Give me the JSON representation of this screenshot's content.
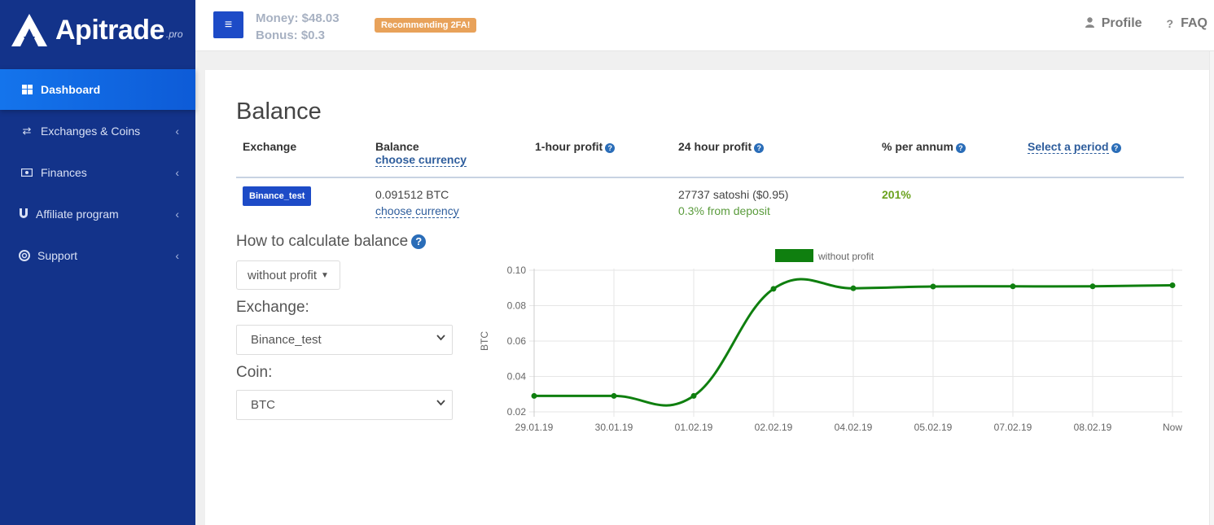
{
  "brand": {
    "name": "Apitrade",
    "suffix": ".pro"
  },
  "sidebar": {
    "items": [
      {
        "label": "Dashboard",
        "icon": "grid-icon",
        "active": true
      },
      {
        "label": "Exchanges & Coins",
        "icon": "exchange-arrows-icon"
      },
      {
        "label": "Finances",
        "icon": "money-icon"
      },
      {
        "label": "Affiliate program",
        "icon": "magnet-icon"
      },
      {
        "label": "Support",
        "icon": "lifebuoy-icon"
      }
    ]
  },
  "topbar": {
    "money": "Money: $48.03",
    "bonus": "Bonus: $0.3",
    "twofa": "Recommending 2FA!",
    "profile": "Profile",
    "faq": "FAQ"
  },
  "balance": {
    "title": "Balance",
    "headers": {
      "exchange": "Exchange",
      "balance": "Balance",
      "choose_currency": "choose currency",
      "hour_profit": "1-hour profit",
      "day_profit": "24 hour profit",
      "per_annum": "% per annum",
      "select_period": "Select a period"
    },
    "row": {
      "exchange": "Binance_test",
      "balance": "0.091512 BTC",
      "choose_currency": "choose currency",
      "day_profit": "27737 satoshi ($0.95)",
      "day_profit_pct": "0.3% from deposit",
      "per_annum": "201%"
    }
  },
  "controls": {
    "calc_label": "How to calculate balance",
    "calc_value": "without profit",
    "exchange_label": "Exchange:",
    "exchange_value": "Binance_test",
    "coin_label": "Coin:",
    "coin_value": "BTC"
  },
  "chart_data": {
    "type": "line",
    "categories": [
      "29.01.19",
      "30.01.19",
      "01.02.19",
      "02.02.19",
      "04.02.19",
      "05.02.19",
      "07.02.19",
      "08.02.19",
      "Now"
    ],
    "series": [
      {
        "name": "without profit",
        "values": [
          0.029,
          0.029,
          0.029,
          0.0895,
          0.0898,
          0.0908,
          0.0909,
          0.0909,
          0.0915
        ],
        "color": "#0f7f0f"
      }
    ],
    "ylabel": "BTC",
    "ylim": [
      0.02,
      0.1
    ],
    "yticks": [
      "0.10",
      "0.08",
      "0.06",
      "0.04",
      "0.02"
    ],
    "grid": true,
    "legend": "top"
  }
}
